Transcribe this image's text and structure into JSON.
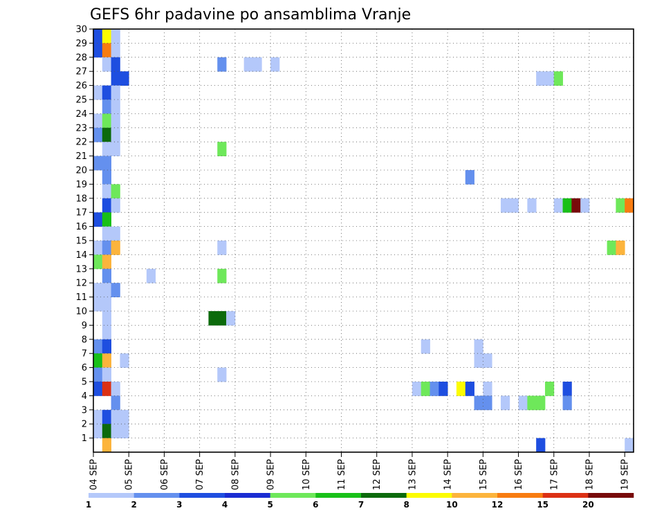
{
  "chart_data": {
    "type": "heatmap",
    "title": "GEFS 6hr padavine po ansamblima Vranje",
    "x_tick_labels": [
      "04 SEP",
      "05 SEP",
      "06 SEP",
      "07 SEP",
      "08 SEP",
      "09 SEP",
      "10 SEP",
      "11 SEP",
      "12 SEP",
      "13 SEP",
      "14 SEP",
      "15 SEP",
      "16 SEP",
      "17 SEP",
      "18 SEP",
      "19 SEP"
    ],
    "y_tick_labels": [
      "1",
      "2",
      "3",
      "4",
      "5",
      "6",
      "7",
      "8",
      "9",
      "10",
      "11",
      "12",
      "13",
      "14",
      "15",
      "16",
      "17",
      "18",
      "19",
      "20",
      "21",
      "22",
      "23",
      "24",
      "25",
      "26",
      "27",
      "28",
      "29",
      "30"
    ],
    "grid": true,
    "colorbar": {
      "labels": [
        "1",
        "2",
        "3",
        "4",
        "5",
        "6",
        "7",
        "8",
        "10",
        "12",
        "15",
        "20"
      ],
      "colors": [
        "#b4c8fa",
        "#6490ee",
        "#1e4ee0",
        "#1a2cd2",
        "#6ee85a",
        "#18c018",
        "#0c6a0c",
        "#fcfc00",
        "#fcb43c",
        "#f87c10",
        "#dc3014",
        "#780a0a"
      ]
    },
    "cells": [
      {
        "m": 30,
        "s": 0,
        "c": 3
      },
      {
        "m": 30,
        "s": 1,
        "c": 7
      },
      {
        "m": 30,
        "s": 13,
        "c": 1
      },
      {
        "m": 30,
        "s": 42,
        "c": 1
      },
      {
        "m": 29,
        "s": 0,
        "c": 3
      },
      {
        "m": 29,
        "s": 1,
        "c": 8
      },
      {
        "m": 29,
        "s": 2,
        "c": 1
      },
      {
        "m": 28,
        "s": 0,
        "c": 3
      },
      {
        "m": 28,
        "s": 1,
        "c": 10
      },
      {
        "m": 28,
        "s": 2,
        "c": 1
      },
      {
        "m": 27,
        "s": 1,
        "c": 1
      },
      {
        "m": 27,
        "s": 2,
        "c": 3
      },
      {
        "m": 27,
        "s": 14,
        "c": 2
      },
      {
        "m": 27,
        "s": 17,
        "c": 1
      },
      {
        "m": 27,
        "s": 18,
        "c": 1
      },
      {
        "m": 27,
        "s": 20,
        "c": 1
      },
      {
        "m": 26,
        "s": 2,
        "c": 3
      },
      {
        "m": 26,
        "s": 3,
        "c": 3
      },
      {
        "m": 26,
        "s": 50,
        "c": 1
      },
      {
        "m": 26,
        "s": 51,
        "c": 1
      },
      {
        "m": 26,
        "s": 52,
        "c": 5
      },
      {
        "m": 25,
        "s": 0,
        "c": 1
      },
      {
        "m": 25,
        "s": 1,
        "c": 3
      },
      {
        "m": 25,
        "s": 2,
        "c": 1
      },
      {
        "m": 24,
        "s": 1,
        "c": 2
      },
      {
        "m": 24,
        "s": 2,
        "c": 1
      },
      {
        "m": 23,
        "s": 0,
        "c": 1
      },
      {
        "m": 23,
        "s": 1,
        "c": 5
      },
      {
        "m": 23,
        "s": 2,
        "c": 1
      },
      {
        "m": 22,
        "s": 0,
        "c": 2
      },
      {
        "m": 22,
        "s": 1,
        "c": 7
      },
      {
        "m": 22,
        "s": 2,
        "c": 1
      },
      {
        "m": 21,
        "s": 1,
        "c": 1
      },
      {
        "m": 21,
        "s": 2,
        "c": 1
      },
      {
        "m": 21,
        "s": 14,
        "c": 5
      },
      {
        "m": 20,
        "s": 0,
        "c": 2
      },
      {
        "m": 20,
        "s": 1,
        "c": 2
      },
      {
        "m": 19,
        "s": 1,
        "c": 2
      },
      {
        "m": 19,
        "s": 42,
        "c": 2
      },
      {
        "m": 18,
        "s": 1,
        "c": 1
      },
      {
        "m": 18,
        "s": 2,
        "c": 5
      },
      {
        "m": 17,
        "s": 1,
        "c": 3
      },
      {
        "m": 17,
        "s": 2,
        "c": 1
      },
      {
        "m": 17,
        "s": 46,
        "c": 1
      },
      {
        "m": 17,
        "s": 47,
        "c": 1
      },
      {
        "m": 17,
        "s": 49,
        "c": 1
      },
      {
        "m": 17,
        "s": 52,
        "c": 1
      },
      {
        "m": 17,
        "s": 53,
        "c": 6
      },
      {
        "m": 17,
        "s": 54,
        "c": 12
      },
      {
        "m": 17,
        "s": 55,
        "c": 1
      },
      {
        "m": 17,
        "s": 59,
        "c": 5
      },
      {
        "m": 17,
        "s": 60,
        "c": 10
      },
      {
        "m": 16,
        "s": 0,
        "c": 3
      },
      {
        "m": 16,
        "s": 1,
        "c": 6
      },
      {
        "m": 15,
        "s": 1,
        "c": 1
      },
      {
        "m": 15,
        "s": 2,
        "c": 1
      },
      {
        "m": 14,
        "s": 0,
        "c": 1
      },
      {
        "m": 14,
        "s": 1,
        "c": 2
      },
      {
        "m": 14,
        "s": 2,
        "c": 9
      },
      {
        "m": 14,
        "s": 14,
        "c": 1
      },
      {
        "m": 14,
        "s": 58,
        "c": 5
      },
      {
        "m": 14,
        "s": 59,
        "c": 9
      },
      {
        "m": 13,
        "s": 0,
        "c": 5
      },
      {
        "m": 13,
        "s": 1,
        "c": 9
      },
      {
        "m": 12,
        "s": 1,
        "c": 2
      },
      {
        "m": 12,
        "s": 6,
        "c": 1
      },
      {
        "m": 12,
        "s": 14,
        "c": 5
      },
      {
        "m": 11,
        "s": 0,
        "c": 1
      },
      {
        "m": 11,
        "s": 1,
        "c": 1
      },
      {
        "m": 11,
        "s": 2,
        "c": 2
      },
      {
        "m": 10,
        "s": 0,
        "c": 1
      },
      {
        "m": 10,
        "s": 1,
        "c": 1
      },
      {
        "m": 9,
        "s": 1,
        "c": 1
      },
      {
        "m": 9,
        "s": 13,
        "c": 7
      },
      {
        "m": 9,
        "s": 14,
        "c": 7
      },
      {
        "m": 9,
        "s": 15,
        "c": 1
      },
      {
        "m": 8,
        "s": 1,
        "c": 1
      },
      {
        "m": 7,
        "s": 0,
        "c": 2
      },
      {
        "m": 7,
        "s": 1,
        "c": 3
      },
      {
        "m": 7,
        "s": 37,
        "c": 1
      },
      {
        "m": 7,
        "s": 43,
        "c": 1
      },
      {
        "m": 6,
        "s": 0,
        "c": 6
      },
      {
        "m": 6,
        "s": 1,
        "c": 9
      },
      {
        "m": 6,
        "s": 3,
        "c": 1
      },
      {
        "m": 6,
        "s": 43,
        "c": 1
      },
      {
        "m": 6,
        "s": 44,
        "c": 1
      },
      {
        "m": 5,
        "s": 0,
        "c": 2
      },
      {
        "m": 5,
        "s": 1,
        "c": 1
      },
      {
        "m": 5,
        "s": 14,
        "c": 1
      },
      {
        "m": 4,
        "s": 0,
        "c": 3
      },
      {
        "m": 4,
        "s": 1,
        "c": 11
      },
      {
        "m": 4,
        "s": 2,
        "c": 1
      },
      {
        "m": 4,
        "s": 36,
        "c": 1
      },
      {
        "m": 4,
        "s": 37,
        "c": 5
      },
      {
        "m": 4,
        "s": 38,
        "c": 2
      },
      {
        "m": 4,
        "s": 39,
        "c": 3
      },
      {
        "m": 4,
        "s": 41,
        "c": 8
      },
      {
        "m": 4,
        "s": 42,
        "c": 3
      },
      {
        "m": 4,
        "s": 44,
        "c": 1
      },
      {
        "m": 4,
        "s": 51,
        "c": 5
      },
      {
        "m": 4,
        "s": 53,
        "c": 3
      },
      {
        "m": 3,
        "s": 2,
        "c": 2
      },
      {
        "m": 3,
        "s": 43,
        "c": 2
      },
      {
        "m": 3,
        "s": 44,
        "c": 2
      },
      {
        "m": 3,
        "s": 46,
        "c": 1
      },
      {
        "m": 3,
        "s": 48,
        "c": 1
      },
      {
        "m": 3,
        "s": 49,
        "c": 5
      },
      {
        "m": 3,
        "s": 50,
        "c": 5
      },
      {
        "m": 3,
        "s": 53,
        "c": 2
      },
      {
        "m": 2,
        "s": 0,
        "c": 1
      },
      {
        "m": 2,
        "s": 1,
        "c": 3
      },
      {
        "m": 2,
        "s": 2,
        "c": 1
      },
      {
        "m": 2,
        "s": 3,
        "c": 1
      },
      {
        "m": 1,
        "s": 0,
        "c": 1
      },
      {
        "m": 1,
        "s": 1,
        "c": 7
      },
      {
        "m": 1,
        "s": 2,
        "c": 1
      },
      {
        "m": 1,
        "s": 3,
        "c": 1
      },
      {
        "m": 0,
        "s": 1,
        "c": 9
      },
      {
        "m": 0,
        "s": 50,
        "c": 3
      },
      {
        "m": 0,
        "s": 60,
        "c": 1
      }
    ]
  }
}
